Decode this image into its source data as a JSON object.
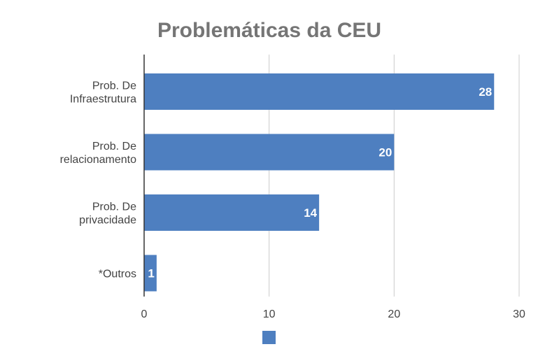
{
  "chart_data": {
    "type": "bar",
    "orientation": "horizontal",
    "title": "Problemáticas da CEU",
    "categories": [
      [
        "Prob. De",
        "Infraestrutura"
      ],
      [
        "Prob. De",
        "relacionamento"
      ],
      [
        "Prob. De",
        "privacidade"
      ],
      [
        "*Outros"
      ]
    ],
    "series": [
      {
        "values": [
          28,
          20,
          14,
          1
        ],
        "color": "#4e7fc0"
      }
    ],
    "data_labels": [
      "28",
      "20",
      "14",
      "1"
    ],
    "xlim": [
      0,
      30
    ],
    "xticks": [
      0,
      10,
      20,
      30
    ],
    "grid": true,
    "legend": "bottom",
    "colors": {
      "bar": "#4e7fc0",
      "grid": "#cccccc",
      "axis": "#333333",
      "title": "#757575",
      "text": "#444444"
    }
  }
}
